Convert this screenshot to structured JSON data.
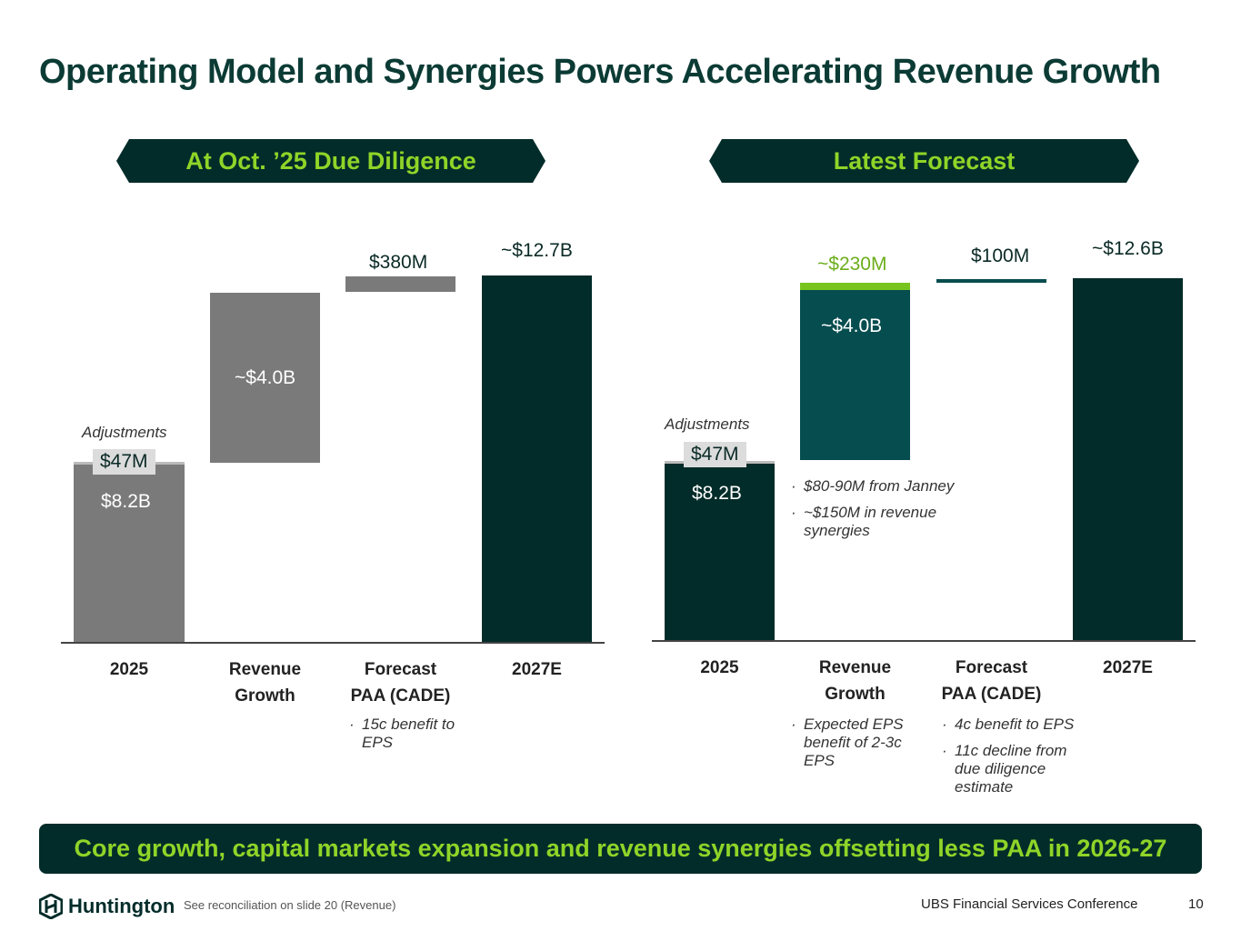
{
  "title": "Operating Model and Synergies Powers Accelerating Revenue Growth",
  "chart_data": [
    {
      "type": "bar",
      "subtype": "waterfall",
      "title": "At Oct. ’25 Due Diligence",
      "categories": [
        "2025",
        "Revenue Growth",
        "Forecast PAA (CADE)",
        "2027E"
      ],
      "values": [
        8.2,
        4.0,
        0.38,
        12.7
      ],
      "unit": "$B",
      "labels": {
        "base": "$8.2B",
        "adjustment": "$47M",
        "adjustment_label": "Adjustments",
        "growth": "~$4.0B",
        "paa": "$380M",
        "total": "~$12.7B"
      },
      "cat_lines": [
        [
          "2025"
        ],
        [
          "Revenue",
          "Growth"
        ],
        [
          "Forecast",
          "PAA (CADE)"
        ],
        [
          "2027E"
        ]
      ],
      "notes": {
        "paa": [
          "15c benefit to EPS"
        ]
      }
    },
    {
      "type": "bar",
      "subtype": "waterfall",
      "title": "Latest Forecast",
      "categories": [
        "2025",
        "Revenue Growth",
        "Forecast PAA (CADE)",
        "2027E"
      ],
      "values": [
        8.2,
        4.0,
        0.1,
        12.6
      ],
      "synergy": 0.23,
      "unit": "$B",
      "labels": {
        "base": "$8.2B",
        "adjustment": "$47M",
        "adjustment_label": "Adjustments",
        "growth": "~$4.0B",
        "synergy": "~$230M",
        "paa": "$100M",
        "total": "~$12.6B"
      },
      "cat_lines": [
        [
          "2025"
        ],
        [
          "Revenue",
          "Growth"
        ],
        [
          "Forecast",
          "PAA (CADE)"
        ],
        [
          "2027E"
        ]
      ],
      "notes": {
        "synergy": [
          "$80-90M from Janney",
          "~$150M in revenue synergies"
        ],
        "growth": [
          "Expected EPS benefit of 2-3c EPS"
        ],
        "paa": [
          "4c benefit to EPS",
          "11c decline from due diligence estimate"
        ]
      }
    }
  ],
  "takeaway": "Core growth, capital markets expansion and revenue synergies offsetting less PAA in 2026-27",
  "footer": {
    "logo": "Huntington",
    "source": "See reconciliation on slide 20 (Revenue)",
    "event": "UBS Financial Services Conference",
    "page": "10"
  },
  "colors": {
    "dark": "#022c29",
    "teal": "#064d4f",
    "lime": "#78c41f",
    "gray": "#7a7a7a"
  }
}
